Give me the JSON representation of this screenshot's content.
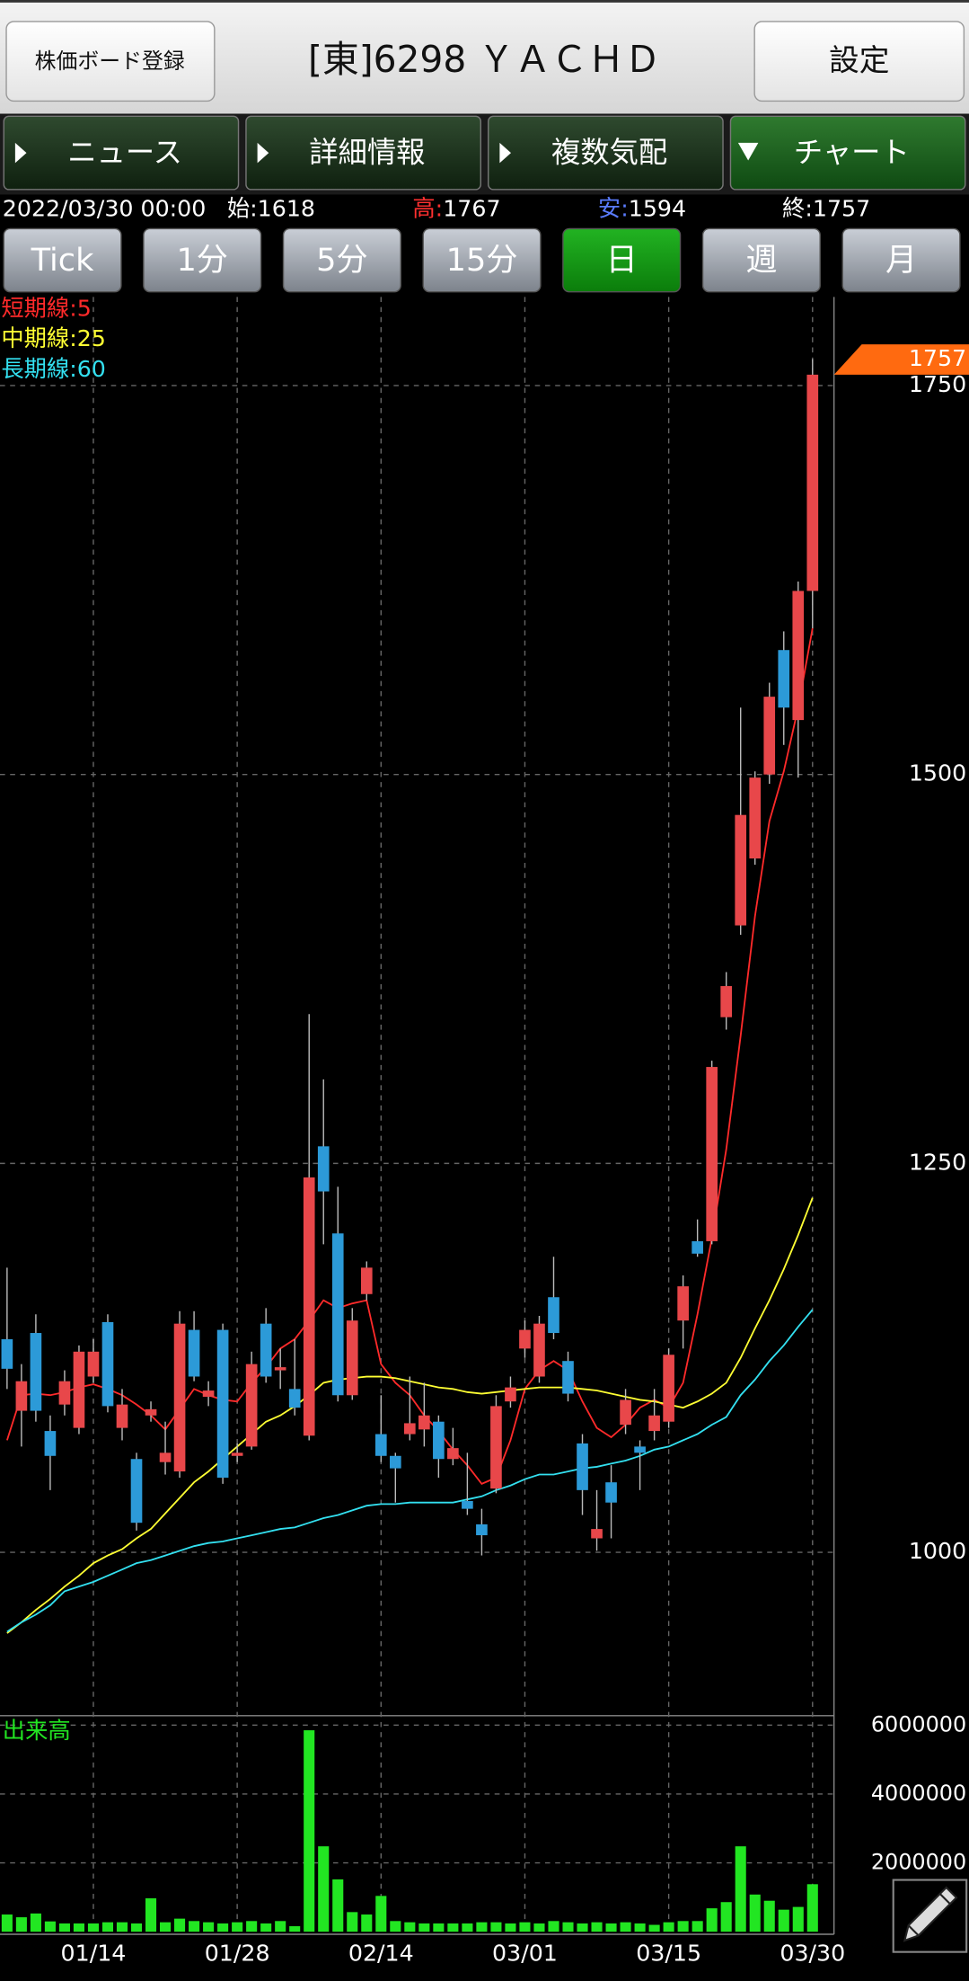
{
  "header": {
    "register_button": "株価ボード登録",
    "title": "[東]6298 ＹＡＣＨＤ",
    "settings_button": "設定"
  },
  "tabs": {
    "items": [
      "ニュース",
      "詳細情報",
      "複数気配",
      "チャート"
    ],
    "active": 3
  },
  "info": {
    "date": "2022/03/30 00:00",
    "open": {
      "label": "始:",
      "value": 1618
    },
    "high": {
      "label": "高:",
      "value": 1767
    },
    "low": {
      "label": "安:",
      "value": 1594
    },
    "close": {
      "label": "終:",
      "value": 1757
    }
  },
  "periods": {
    "items": [
      "Tick",
      "1分",
      "5分",
      "15分",
      "日",
      "週",
      "月"
    ],
    "selected": 4
  },
  "chart_data": {
    "type": "candlestick",
    "categories": [
      null,
      null,
      null,
      null,
      null,
      null,
      "01/14",
      null,
      null,
      null,
      null,
      null,
      null,
      null,
      null,
      null,
      "01/28",
      null,
      null,
      null,
      null,
      null,
      null,
      null,
      null,
      null,
      "02/14",
      null,
      null,
      null,
      null,
      null,
      null,
      null,
      null,
      null,
      "03/01",
      null,
      null,
      null,
      null,
      null,
      null,
      null,
      null,
      null,
      "03/15",
      null,
      null,
      null,
      null,
      null,
      null,
      null,
      null,
      null,
      "03/30"
    ],
    "open": [
      1137,
      1091,
      1141,
      1078,
      1095,
      1080,
      1113,
      1148,
      1080,
      1060,
      1088,
      1058,
      1052,
      1143,
      1100,
      1143,
      1062,
      1068,
      1147,
      1117,
      1105,
      1075,
      1261,
      1205,
      1101,
      1166,
      1076,
      1062,
      1076,
      1079,
      1084,
      1060,
      1033,
      1018,
      1041,
      1097,
      1131,
      1113,
      1164,
      1123,
      1070,
      1009,
      1045,
      1082,
      1068,
      1078,
      1084,
      1149,
      1200,
      1200,
      1344,
      1403,
      1446,
      1500,
      1580,
      1535,
      1618
    ],
    "high": [
      1183,
      1121,
      1153,
      1088,
      1117,
      1133,
      1137,
      1153,
      1105,
      1064,
      1097,
      1084,
      1155,
      1155,
      1110,
      1147,
      1070,
      1129,
      1157,
      1131,
      1137,
      1346,
      1304,
      1235,
      1157,
      1187,
      1101,
      1064,
      1113,
      1109,
      1088,
      1080,
      1064,
      1028,
      1101,
      1113,
      1149,
      1152,
      1190,
      1129,
      1076,
      1040,
      1056,
      1105,
      1072,
      1105,
      1131,
      1178,
      1214,
      1316,
      1373,
      1543,
      1502,
      1559,
      1592,
      1624,
      1767
    ],
    "low": [
      1105,
      1068,
      1084,
      1040,
      1088,
      1076,
      1109,
      1090,
      1072,
      1014,
      1084,
      1050,
      1048,
      1110,
      1094,
      1044,
      1058,
      1066,
      1109,
      1105,
      1088,
      1072,
      1198,
      1097,
      1098,
      1162,
      1058,
      1032,
      1072,
      1068,
      1048,
      1056,
      1024,
      998,
      1038,
      1093,
      1125,
      1109,
      1137,
      1097,
      1024,
      1001,
      1009,
      1076,
      1040,
      1072,
      1080,
      1131,
      1190,
      1198,
      1336,
      1397,
      1442,
      1494,
      1519,
      1498,
      1594
    ],
    "close": [
      1118,
      1110,
      1091,
      1062,
      1110,
      1129,
      1129,
      1094,
      1095,
      1019,
      1092,
      1064,
      1147,
      1113,
      1104,
      1048,
      1064,
      1121,
      1113,
      1119,
      1093,
      1241,
      1232,
      1101,
      1149,
      1183,
      1062,
      1054,
      1083,
      1088,
      1060,
      1067,
      1028,
      1011,
      1094,
      1106,
      1143,
      1147,
      1141,
      1102,
      1040,
      1015,
      1032,
      1098,
      1064,
      1088,
      1127,
      1171,
      1192,
      1312,
      1364,
      1474,
      1498,
      1550,
      1543,
      1618,
      1757
    ],
    "up_color": "#e8474a",
    "down_color": "#2c9ad8",
    "ylim": [
      895,
      1807
    ],
    "yticks": [
      1000,
      1250,
      1500,
      1750
    ],
    "grid": true,
    "indicators": [
      {
        "name": "短期線:5",
        "color": "#ff2a2a",
        "values": [
          1072,
          1101,
          1102,
          1101,
          1103,
          1106,
          1108,
          1105,
          1101,
          1095,
          1088,
          1079,
          1092,
          1105,
          1101,
          1098,
          1097,
          1109,
          1119,
          1131,
          1137,
          1149,
          1162,
          1157,
          1160,
          1162,
          1121,
          1109,
          1101,
          1088,
          1078,
          1066,
          1056,
          1044,
          1048,
          1072,
          1105,
          1117,
          1123,
          1117,
          1097,
          1080,
          1074,
          1082,
          1093,
          1098,
          1093,
          1109,
          1153,
          1202,
          1259,
          1332,
          1409,
          1470,
          1502,
          1543,
          1594
        ]
      },
      {
        "name": "中期線:25",
        "color": "#ffff33",
        "values": [
          948,
          955,
          963,
          970,
          978,
          985,
          993,
          998,
          1002,
          1009,
          1015,
          1025,
          1035,
          1045,
          1052,
          1060,
          1068,
          1076,
          1084,
          1088,
          1094,
          1101,
          1109,
          1111,
          1112,
          1113,
          1113,
          1112,
          1110,
          1108,
          1106,
          1105,
          1103,
          1102,
          1103,
          1104,
          1105,
          1106,
          1106,
          1106,
          1105,
          1104,
          1102,
          1100,
          1098,
          1097,
          1095,
          1093,
          1097,
          1102,
          1109,
          1125,
          1144,
          1162,
          1182,
          1204,
          1228
        ]
      },
      {
        "name": "長期線:60",
        "color": "#33e0f0",
        "values": [
          949,
          955,
          960,
          966,
          975,
          978,
          981,
          985,
          989,
          993,
          995,
          998,
          1001,
          1004,
          1006,
          1007,
          1009,
          1011,
          1013,
          1015,
          1016,
          1019,
          1022,
          1024,
          1027,
          1030,
          1031,
          1031,
          1032,
          1032,
          1032,
          1032,
          1034,
          1036,
          1040,
          1043,
          1047,
          1050,
          1050,
          1052,
          1054,
          1055,
          1057,
          1059,
          1062,
          1066,
          1068,
          1072,
          1076,
          1082,
          1087,
          1101,
          1111,
          1123,
          1133,
          1145,
          1156
        ]
      }
    ],
    "volume": {
      "title": "出来高",
      "color": "#22e622",
      "values": [
        500000,
        420000,
        530000,
        300000,
        240000,
        240000,
        240000,
        275000,
        275000,
        240000,
        970000,
        275000,
        380000,
        310000,
        275000,
        240000,
        275000,
        310000,
        240000,
        310000,
        160000,
        5850000,
        2480000,
        1520000,
        570000,
        500000,
        1040000,
        310000,
        275000,
        240000,
        240000,
        240000,
        240000,
        275000,
        275000,
        240000,
        275000,
        240000,
        310000,
        275000,
        240000,
        275000,
        240000,
        275000,
        240000,
        200000,
        275000,
        310000,
        310000,
        680000,
        860000,
        2480000,
        1080000,
        900000,
        640000,
        720000,
        1380000
      ],
      "ylim": [
        0,
        6200000
      ],
      "yticks": [
        2000000,
        4000000,
        6000000
      ]
    },
    "last_price_color": "#ff6a10"
  }
}
